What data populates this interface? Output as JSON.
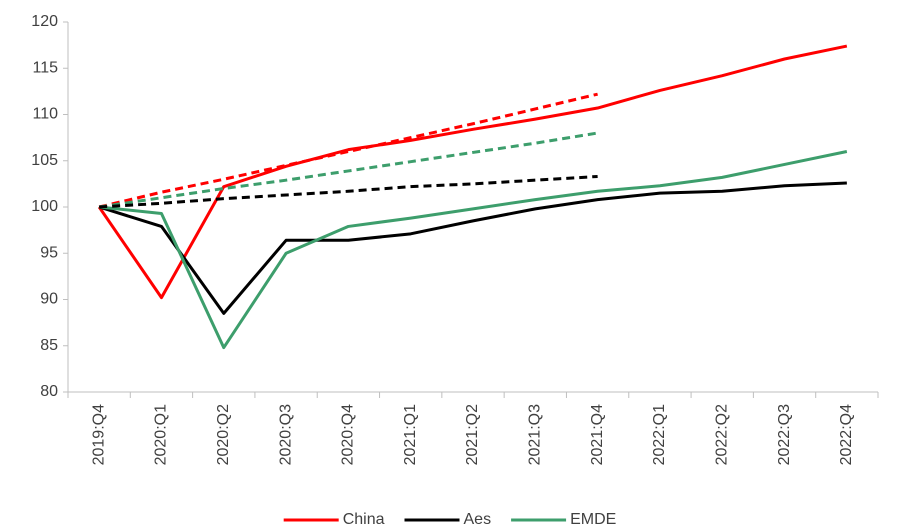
{
  "chart_data": {
    "type": "line",
    "categories": [
      "2019:Q4",
      "2020:Q1",
      "2020:Q2",
      "2020:Q3",
      "2020:Q4",
      "2021:Q1",
      "2021:Q2",
      "2021:Q3",
      "2021:Q4",
      "2022:Q1",
      "2022:Q2",
      "2022:Q3",
      "2022:Q4"
    ],
    "series": [
      {
        "name": "China",
        "color": "#ff0000",
        "values": [
          100,
          90.2,
          102.2,
          104.4,
          106.2,
          107.2,
          108.4,
          109.5,
          110.7,
          112.6,
          114.2,
          116.0,
          117.4
        ]
      },
      {
        "name": "Aes",
        "color": "#000000",
        "values": [
          100,
          97.9,
          88.5,
          96.4,
          96.4,
          97.1,
          98.5,
          99.8,
          100.8,
          101.5,
          101.7,
          102.3,
          102.6
        ]
      },
      {
        "name": "EMDE",
        "color": "#3d9e6c",
        "values": [
          100,
          99.3,
          84.8,
          95.0,
          97.9,
          98.8,
          99.8,
          100.8,
          101.7,
          102.3,
          103.2,
          104.6,
          106.0
        ]
      },
      {
        "color": "#ff0000",
        "dashed": true,
        "values": [
          100,
          101.6,
          103.0,
          104.5,
          106.0,
          107.5,
          109.0,
          110.6,
          112.2,
          null,
          null,
          null,
          null
        ]
      },
      {
        "color": "#3d9e6c",
        "dashed": true,
        "values": [
          100,
          101.0,
          102.0,
          102.9,
          103.9,
          104.9,
          105.9,
          106.9,
          108.0,
          null,
          null,
          null,
          null
        ]
      },
      {
        "color": "#000000",
        "dashed": true,
        "values": [
          100,
          100.4,
          100.9,
          101.3,
          101.7,
          102.2,
          102.5,
          102.9,
          103.3,
          null,
          null,
          null,
          null
        ]
      }
    ],
    "ylim": [
      80,
      120
    ],
    "yticks": [
      80,
      85,
      90,
      95,
      100,
      105,
      110,
      115,
      120
    ],
    "grid": false,
    "legend": "bottom"
  }
}
